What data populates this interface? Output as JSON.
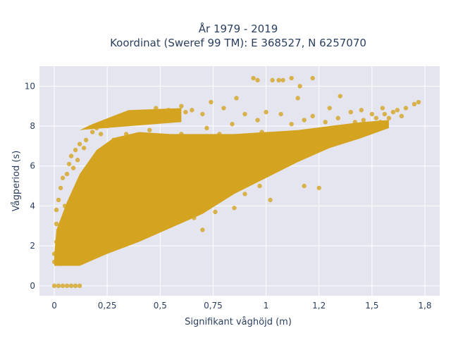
{
  "chart_data": {
    "type": "scatter",
    "title_line1": "År 1979 - 2019",
    "title_line2": "Koordinat (Sweref 99 TM): E 368527, N 6257070",
    "xlabel": "Signifikant våghöjd (m)",
    "ylabel": "Vågperiod (s)",
    "xlim": [
      -0.07,
      1.82
    ],
    "ylim": [
      -0.5,
      11.0
    ],
    "xticks": [
      {
        "value": 0,
        "label": "0"
      },
      {
        "value": 0.25,
        "label": "0,25"
      },
      {
        "value": 0.5,
        "label": "0,5"
      },
      {
        "value": 0.75,
        "label": "0,75"
      },
      {
        "value": 1.0,
        "label": "1"
      },
      {
        "value": 1.25,
        "label": "1,2"
      },
      {
        "value": 1.5,
        "label": "1,5"
      },
      {
        "value": 1.75,
        "label": "1,8"
      }
    ],
    "yticks": [
      {
        "value": 0,
        "label": "0"
      },
      {
        "value": 2,
        "label": "2"
      },
      {
        "value": 4,
        "label": "4"
      },
      {
        "value": 6,
        "label": "6"
      },
      {
        "value": 8,
        "label": "8"
      },
      {
        "value": 10,
        "label": "10"
      }
    ],
    "grid": true,
    "background_color": "#e5e5f0",
    "marker_color": "#d4a421",
    "series": [
      {
        "points": [
          [
            0.0,
            0.0
          ],
          [
            0.02,
            0.0
          ],
          [
            0.04,
            0.0
          ],
          [
            0.06,
            0.0
          ],
          [
            0.08,
            0.0
          ],
          [
            0.1,
            0.0
          ],
          [
            0.12,
            0.0
          ],
          [
            0.0,
            1.2
          ],
          [
            0.0,
            1.6
          ],
          [
            0.01,
            2.2
          ],
          [
            0.01,
            3.1
          ],
          [
            0.02,
            2.6
          ],
          [
            0.01,
            3.8
          ],
          [
            0.02,
            4.3
          ],
          [
            0.03,
            1.1
          ],
          [
            0.03,
            4.9
          ],
          [
            0.04,
            5.4
          ],
          [
            0.05,
            4.0
          ],
          [
            0.06,
            5.6
          ],
          [
            0.07,
            6.1
          ],
          [
            0.06,
            3.2
          ],
          [
            0.05,
            2.1
          ],
          [
            0.04,
            1.3
          ],
          [
            0.08,
            6.5
          ],
          [
            0.09,
            5.9
          ],
          [
            0.1,
            6.8
          ],
          [
            0.1,
            4.6
          ],
          [
            0.09,
            2.9
          ],
          [
            0.08,
            1.6
          ],
          [
            0.11,
            6.3
          ],
          [
            0.12,
            7.1
          ],
          [
            0.12,
            5.2
          ],
          [
            0.12,
            3.4
          ],
          [
            0.12,
            1.8
          ],
          [
            0.14,
            6.9
          ],
          [
            0.15,
            7.3
          ],
          [
            0.15,
            5.6
          ],
          [
            0.16,
            4.1
          ],
          [
            0.15,
            2.2
          ],
          [
            0.18,
            7.7
          ],
          [
            0.18,
            6.2
          ],
          [
            0.2,
            7.9
          ],
          [
            0.2,
            6.6
          ],
          [
            0.2,
            5.0
          ],
          [
            0.2,
            3.2
          ],
          [
            0.2,
            1.9
          ],
          [
            0.22,
            7.6
          ],
          [
            0.22,
            4.4
          ],
          [
            0.24,
            8.2
          ],
          [
            0.24,
            6.9
          ],
          [
            0.24,
            2.4
          ],
          [
            0.25,
            8.0
          ],
          [
            0.26,
            5.9
          ],
          [
            0.27,
            3.6
          ],
          [
            0.28,
            7.3
          ],
          [
            0.28,
            2.5
          ],
          [
            0.3,
            8.4
          ],
          [
            0.3,
            6.4
          ],
          [
            0.3,
            4.8
          ],
          [
            0.3,
            2.7
          ],
          [
            0.32,
            8.1
          ],
          [
            0.32,
            5.3
          ],
          [
            0.33,
            3.1
          ],
          [
            0.34,
            7.6
          ],
          [
            0.35,
            8.6
          ],
          [
            0.35,
            6.0
          ],
          [
            0.35,
            4.1
          ],
          [
            0.36,
            2.9
          ],
          [
            0.38,
            8.3
          ],
          [
            0.38,
            6.7
          ],
          [
            0.4,
            8.7
          ],
          [
            0.4,
            7.4
          ],
          [
            0.4,
            5.6
          ],
          [
            0.4,
            3.7
          ],
          [
            0.4,
            2.6
          ],
          [
            0.42,
            4.6
          ],
          [
            0.44,
            8.5
          ],
          [
            0.44,
            6.3
          ],
          [
            0.45,
            7.8
          ],
          [
            0.45,
            3.2
          ],
          [
            0.46,
            5.1
          ],
          [
            0.48,
            8.9
          ],
          [
            0.48,
            6.9
          ],
          [
            0.5,
            8.6
          ],
          [
            0.5,
            7.5
          ],
          [
            0.5,
            5.8
          ],
          [
            0.5,
            4.3
          ],
          [
            0.5,
            3.0
          ],
          [
            0.52,
            6.4
          ],
          [
            0.54,
            8.8
          ],
          [
            0.55,
            7.3
          ],
          [
            0.55,
            4.9
          ],
          [
            0.56,
            3.4
          ],
          [
            0.58,
            8.4
          ],
          [
            0.58,
            6.1
          ],
          [
            0.6,
            9.0
          ],
          [
            0.6,
            7.6
          ],
          [
            0.6,
            5.3
          ],
          [
            0.6,
            3.6
          ],
          [
            0.62,
            8.7
          ],
          [
            0.62,
            4.3
          ],
          [
            0.64,
            6.8
          ],
          [
            0.65,
            8.8
          ],
          [
            0.65,
            5.7
          ],
          [
            0.66,
            3.4
          ],
          [
            0.68,
            7.4
          ],
          [
            0.7,
            8.6
          ],
          [
            0.7,
            6.3
          ],
          [
            0.7,
            4.6
          ],
          [
            0.7,
            2.8
          ],
          [
            0.72,
            7.9
          ],
          [
            0.72,
            5.2
          ],
          [
            0.74,
            9.2
          ],
          [
            0.75,
            6.9
          ],
          [
            0.75,
            4.1
          ],
          [
            0.76,
            3.7
          ],
          [
            0.78,
            7.6
          ],
          [
            0.78,
            5.6
          ],
          [
            0.8,
            8.9
          ],
          [
            0.8,
            6.6
          ],
          [
            0.8,
            4.4
          ],
          [
            0.82,
            7.2
          ],
          [
            0.84,
            8.1
          ],
          [
            0.84,
            5.9
          ],
          [
            0.85,
            3.9
          ],
          [
            0.86,
            9.4
          ],
          [
            0.87,
            7.0
          ],
          [
            0.88,
            6.3
          ],
          [
            0.9,
            8.6
          ],
          [
            0.9,
            5.6
          ],
          [
            0.9,
            4.6
          ],
          [
            0.92,
            7.4
          ],
          [
            0.94,
            10.4
          ],
          [
            0.95,
            6.6
          ],
          [
            0.96,
            10.3
          ],
          [
            0.96,
            8.3
          ],
          [
            0.97,
            5.0
          ],
          [
            0.98,
            7.7
          ],
          [
            1.0,
            8.7
          ],
          [
            1.0,
            6.9
          ],
          [
            1.0,
            5.9
          ],
          [
            1.02,
            4.3
          ],
          [
            1.03,
            10.3
          ],
          [
            1.04,
            7.4
          ],
          [
            1.05,
            6.3
          ],
          [
            1.06,
            10.3
          ],
          [
            1.07,
            8.6
          ],
          [
            1.08,
            10.3
          ],
          [
            1.1,
            7.0
          ],
          [
            1.1,
            6.1
          ],
          [
            1.12,
            10.4
          ],
          [
            1.12,
            8.1
          ],
          [
            1.14,
            6.9
          ],
          [
            1.15,
            7.6
          ],
          [
            1.15,
            9.4
          ],
          [
            1.16,
            10.0
          ],
          [
            1.18,
            8.3
          ],
          [
            1.18,
            5.0
          ],
          [
            1.2,
            7.4
          ],
          [
            1.2,
            6.6
          ],
          [
            1.22,
            10.4
          ],
          [
            1.22,
            8.5
          ],
          [
            1.24,
            7.8
          ],
          [
            1.25,
            4.9
          ],
          [
            1.26,
            6.9
          ],
          [
            1.28,
            8.2
          ],
          [
            1.3,
            7.6
          ],
          [
            1.3,
            8.9
          ],
          [
            1.32,
            7.2
          ],
          [
            1.34,
            8.4
          ],
          [
            1.35,
            9.5
          ],
          [
            1.36,
            7.7
          ],
          [
            1.38,
            8.0
          ],
          [
            1.4,
            8.7
          ],
          [
            1.4,
            7.5
          ],
          [
            1.42,
            8.2
          ],
          [
            1.44,
            7.9
          ],
          [
            1.45,
            8.8
          ],
          [
            1.46,
            8.3
          ],
          [
            1.48,
            8.1
          ],
          [
            1.5,
            8.6
          ],
          [
            1.5,
            7.8
          ],
          [
            1.52,
            8.4
          ],
          [
            1.54,
            8.2
          ],
          [
            1.55,
            8.9
          ],
          [
            1.56,
            8.6
          ],
          [
            1.58,
            8.4
          ],
          [
            1.6,
            8.7
          ],
          [
            1.62,
            8.8
          ],
          [
            1.64,
            8.5
          ],
          [
            1.66,
            8.9
          ],
          [
            1.7,
            9.1
          ],
          [
            1.72,
            9.2
          ]
        ]
      }
    ]
  }
}
